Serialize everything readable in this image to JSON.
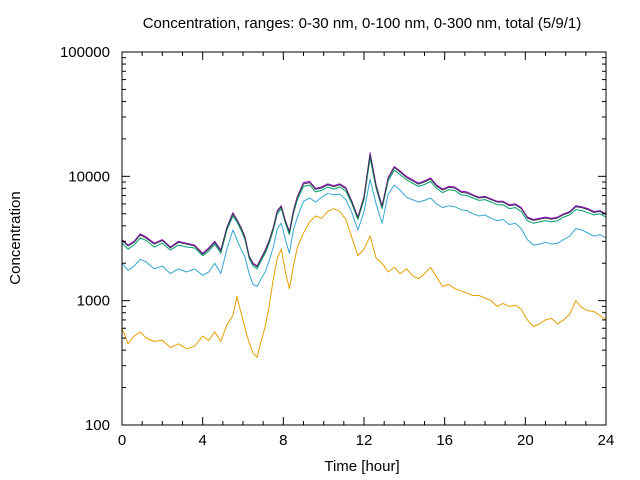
{
  "chart_data": {
    "type": "line",
    "title": "Concentration, ranges: 0-30 nm, 0-100 nm, 0-300 nm, total (5/9/1)",
    "xlabel": "Time [hour]",
    "ylabel": "Concentration",
    "xlim": [
      0,
      24
    ],
    "ylim": [
      100,
      100000
    ],
    "yscale": "log",
    "grid": false,
    "legend": "none",
    "xticks": [
      0,
      4,
      8,
      12,
      16,
      20,
      24
    ],
    "xtick_labels": [
      "0",
      "4",
      "8",
      "12",
      "16",
      "20",
      "24"
    ],
    "yticks": [
      100,
      1000,
      10000,
      100000
    ],
    "ytick_labels": [
      "100",
      "1000",
      "10000",
      "100000"
    ],
    "series": [
      {
        "color": "#e69f00",
        "x": [
          0,
          0.3,
          0.6,
          0.9,
          1.2,
          1.6,
          2.0,
          2.4,
          2.8,
          3.2,
          3.6,
          4.0,
          4.3,
          4.6,
          4.9,
          5.2,
          5.5,
          5.7,
          5.9,
          6.1,
          6.3,
          6.5,
          6.7,
          6.9,
          7.1,
          7.3,
          7.5,
          7.7,
          7.9,
          8.1,
          8.3,
          8.5,
          8.7,
          9.0,
          9.3,
          9.6,
          9.9,
          10.2,
          10.5,
          10.8,
          11.1,
          11.4,
          11.7,
          12.0,
          12.3,
          12.6,
          12.9,
          13.2,
          13.5,
          13.8,
          14.1,
          14.4,
          14.7,
          15.0,
          15.3,
          15.6,
          15.9,
          16.2,
          16.5,
          16.8,
          17.1,
          17.4,
          17.7,
          18.0,
          18.3,
          18.6,
          18.9,
          19.2,
          19.5,
          19.8,
          20.1,
          20.4,
          20.7,
          21.0,
          21.3,
          21.6,
          21.9,
          22.2,
          22.5,
          22.8,
          23.1,
          23.4,
          23.7,
          24.0
        ],
        "y": [
          600,
          450,
          520,
          560,
          500,
          470,
          480,
          420,
          450,
          410,
          430,
          520,
          480,
          560,
          470,
          640,
          760,
          1080,
          800,
          600,
          460,
          380,
          350,
          470,
          620,
          900,
          1500,
          2200,
          2600,
          1700,
          1250,
          1900,
          2700,
          3500,
          4300,
          4800,
          4600,
          5200,
          5500,
          5200,
          4500,
          3200,
          2300,
          2600,
          3300,
          2200,
          2000,
          1700,
          1850,
          1650,
          1800,
          1600,
          1500,
          1650,
          1850,
          1550,
          1300,
          1350,
          1250,
          1200,
          1150,
          1100,
          1100,
          1050,
          1000,
          900,
          950,
          900,
          920,
          850,
          700,
          620,
          650,
          700,
          720,
          650,
          700,
          780,
          1000,
          880,
          830,
          820,
          760,
          700
        ]
      },
      {
        "color": "#35a7d1",
        "x": [
          0,
          0.3,
          0.6,
          0.9,
          1.2,
          1.6,
          2.0,
          2.4,
          2.8,
          3.2,
          3.6,
          4.0,
          4.3,
          4.6,
          4.9,
          5.2,
          5.5,
          5.7,
          5.9,
          6.1,
          6.3,
          6.5,
          6.7,
          6.9,
          7.1,
          7.3,
          7.5,
          7.7,
          7.9,
          8.1,
          8.3,
          8.5,
          8.7,
          9.0,
          9.3,
          9.6,
          9.9,
          10.2,
          10.5,
          10.8,
          11.1,
          11.4,
          11.7,
          12.0,
          12.3,
          12.6,
          12.9,
          13.2,
          13.5,
          13.8,
          14.1,
          14.4,
          14.7,
          15.0,
          15.3,
          15.6,
          15.9,
          16.2,
          16.5,
          16.8,
          17.1,
          17.4,
          17.7,
          18.0,
          18.3,
          18.6,
          18.9,
          19.2,
          19.5,
          19.8,
          20.1,
          20.4,
          20.7,
          21.0,
          21.3,
          21.6,
          21.9,
          22.2,
          22.5,
          22.8,
          23.1,
          23.4,
          23.7,
          24.0
        ],
        "y": [
          2000,
          1750,
          1900,
          2150,
          2050,
          1800,
          1900,
          1650,
          1800,
          1700,
          1800,
          1600,
          1700,
          2000,
          1650,
          2600,
          3700,
          3100,
          2600,
          2250,
          1650,
          1350,
          1300,
          1500,
          1700,
          2100,
          2700,
          3800,
          4200,
          3100,
          2400,
          3700,
          4700,
          6300,
          6700,
          6200,
          6800,
          7300,
          7100,
          7200,
          6500,
          5100,
          3700,
          5200,
          9500,
          6000,
          4200,
          7200,
          8500,
          7700,
          6800,
          6500,
          6200,
          6400,
          6700,
          6000,
          5600,
          5800,
          5700,
          5400,
          5300,
          5000,
          4800,
          4900,
          4600,
          4400,
          4500,
          4100,
          4200,
          3800,
          3100,
          2800,
          2850,
          2950,
          2850,
          2900,
          3100,
          3300,
          3800,
          3700,
          3500,
          3300,
          3400,
          3200
        ]
      },
      {
        "color": "#009e73",
        "x": [
          0,
          0.3,
          0.6,
          0.9,
          1.2,
          1.6,
          2.0,
          2.4,
          2.8,
          3.2,
          3.6,
          4.0,
          4.3,
          4.6,
          4.9,
          5.2,
          5.5,
          5.7,
          5.9,
          6.1,
          6.3,
          6.5,
          6.7,
          6.9,
          7.1,
          7.3,
          7.5,
          7.7,
          7.9,
          8.1,
          8.3,
          8.5,
          8.7,
          9.0,
          9.3,
          9.6,
          9.9,
          10.2,
          10.5,
          10.8,
          11.1,
          11.4,
          11.7,
          12.0,
          12.3,
          12.6,
          12.9,
          13.2,
          13.5,
          13.8,
          14.1,
          14.4,
          14.7,
          15.0,
          15.3,
          15.6,
          15.9,
          16.2,
          16.5,
          16.8,
          17.1,
          17.4,
          17.7,
          18.0,
          18.3,
          18.6,
          18.9,
          19.2,
          19.5,
          19.8,
          20.1,
          20.4,
          20.7,
          21.0,
          21.3,
          21.6,
          21.9,
          22.2,
          22.5,
          22.8,
          23.1,
          23.4,
          23.7,
          24.0
        ],
        "y": [
          2900,
          2600,
          2800,
          3200,
          3050,
          2700,
          2900,
          2550,
          2800,
          2700,
          2650,
          2300,
          2500,
          2850,
          2400,
          3700,
          4800,
          4300,
          3700,
          3100,
          2200,
          1900,
          1800,
          2100,
          2400,
          2900,
          3700,
          5000,
          5500,
          4200,
          3400,
          5000,
          6500,
          8300,
          8500,
          7500,
          7700,
          8200,
          7900,
          8200,
          7600,
          6000,
          4500,
          6500,
          14000,
          8000,
          5500,
          9200,
          11200,
          10300,
          9400,
          8800,
          8300,
          8600,
          9100,
          8000,
          7400,
          7800,
          7700,
          7100,
          7000,
          6700,
          6400,
          6500,
          6200,
          5900,
          5900,
          5500,
          5600,
          5200,
          4400,
          4200,
          4300,
          4400,
          4300,
          4400,
          4700,
          4900,
          5400,
          5300,
          5100,
          4900,
          5000,
          4700
        ]
      },
      {
        "color": "#9400d3",
        "x": [
          0,
          0.3,
          0.6,
          0.9,
          1.2,
          1.6,
          2.0,
          2.4,
          2.8,
          3.2,
          3.6,
          4.0,
          4.3,
          4.6,
          4.9,
          5.2,
          5.5,
          5.7,
          5.9,
          6.1,
          6.3,
          6.5,
          6.7,
          6.9,
          7.1,
          7.3,
          7.5,
          7.7,
          7.9,
          8.1,
          8.3,
          8.5,
          8.7,
          9.0,
          9.3,
          9.6,
          9.9,
          10.2,
          10.5,
          10.8,
          11.1,
          11.4,
          11.7,
          12.0,
          12.3,
          12.6,
          12.9,
          13.2,
          13.5,
          13.8,
          14.1,
          14.4,
          14.7,
          15.0,
          15.3,
          15.6,
          15.9,
          16.2,
          16.5,
          16.8,
          17.1,
          17.4,
          17.7,
          18.0,
          18.3,
          18.6,
          18.9,
          19.2,
          19.5,
          19.8,
          20.1,
          20.4,
          20.7,
          21.0,
          21.3,
          21.6,
          21.9,
          22.2,
          22.5,
          22.8,
          23.1,
          23.4,
          23.7,
          24.0
        ],
        "y": [
          3100,
          2800,
          3000,
          3450,
          3250,
          2900,
          3100,
          2700,
          3000,
          2900,
          2800,
          2400,
          2650,
          3000,
          2550,
          3900,
          5100,
          4500,
          3900,
          3250,
          2300,
          2000,
          1900,
          2200,
          2550,
          3050,
          3900,
          5300,
          5800,
          4400,
          3600,
          5300,
          6900,
          8900,
          9100,
          8000,
          8200,
          8700,
          8400,
          8700,
          8100,
          6300,
          4700,
          6900,
          15500,
          8500,
          5800,
          9800,
          12000,
          11000,
          10000,
          9400,
          8800,
          9200,
          9700,
          8500,
          7900,
          8300,
          8200,
          7600,
          7500,
          7100,
          6800,
          6900,
          6600,
          6300,
          6300,
          5900,
          6000,
          5600,
          4700,
          4500,
          4600,
          4700,
          4600,
          4700,
          5000,
          5200,
          5800,
          5700,
          5500,
          5200,
          5300,
          5000
        ]
      },
      {
        "color": "#3c3c46",
        "x": [
          0,
          0.3,
          0.6,
          0.9,
          1.2,
          1.6,
          2.0,
          2.4,
          2.8,
          3.2,
          3.6,
          4.0,
          4.3,
          4.6,
          4.9,
          5.2,
          5.5,
          5.7,
          5.9,
          6.1,
          6.3,
          6.5,
          6.7,
          6.9,
          7.1,
          7.3,
          7.5,
          7.7,
          7.9,
          8.1,
          8.3,
          8.5,
          8.7,
          9.0,
          9.3,
          9.6,
          9.9,
          10.2,
          10.5,
          10.8,
          11.1,
          11.4,
          11.7,
          12.0,
          12.3,
          12.6,
          12.9,
          13.2,
          13.5,
          13.8,
          14.1,
          14.4,
          14.7,
          15.0,
          15.3,
          15.6,
          15.9,
          16.2,
          16.5,
          16.8,
          17.1,
          17.4,
          17.7,
          18.0,
          18.3,
          18.6,
          18.9,
          19.2,
          19.5,
          19.8,
          20.1,
          20.4,
          20.7,
          21.0,
          21.3,
          21.6,
          21.9,
          22.2,
          22.5,
          22.8,
          23.1,
          23.4,
          23.7,
          24.0
        ],
        "y": [
          3050,
          2750,
          2950,
          3380,
          3180,
          2850,
          3050,
          2650,
          2950,
          2850,
          2750,
          2360,
          2600,
          2950,
          2500,
          3850,
          5000,
          4450,
          3850,
          3200,
          2270,
          1970,
          1870,
          2170,
          2500,
          3000,
          3850,
          5200,
          5700,
          4350,
          3550,
          5200,
          6800,
          8700,
          8900,
          7850,
          8050,
          8550,
          8250,
          8550,
          7950,
          6200,
          4650,
          6800,
          15000,
          8350,
          5700,
          9600,
          11800,
          10800,
          9800,
          9200,
          8650,
          9000,
          9500,
          8350,
          7750,
          8150,
          8050,
          7450,
          7350,
          7000,
          6700,
          6800,
          6500,
          6200,
          6200,
          5800,
          5900,
          5500,
          4620,
          4420,
          4520,
          4620,
          4520,
          4620,
          4920,
          5120,
          5700,
          5600,
          5400,
          5120,
          5220,
          4920
        ]
      }
    ]
  }
}
